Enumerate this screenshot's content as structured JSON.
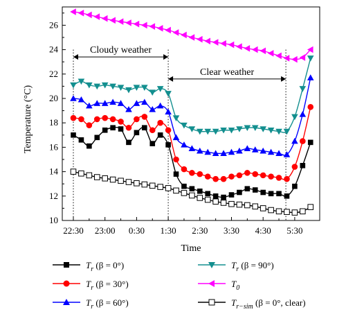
{
  "chart_data": {
    "type": "line",
    "xlabel": "Time",
    "ylabel": "Temperature (°C)",
    "x_ticks": [
      "22:30",
      "23:00",
      "0:30",
      "1:30",
      "2:30",
      "3:30",
      "4:30",
      "5:30"
    ],
    "x_tick_pos": [
      0,
      1,
      2,
      3,
      4,
      5,
      6,
      7
    ],
    "xlim": [
      -0.3,
      7.8
    ],
    "ylim": [
      10,
      27.5
    ],
    "y_ticks": [
      10,
      12,
      14,
      16,
      18,
      20,
      22,
      24,
      26
    ],
    "annotations": [
      {
        "text": "Cloudy weather",
        "x_from": 0,
        "x_to": 3.0,
        "y": 23.4
      },
      {
        "text": "Clear weather",
        "x_from": 3.0,
        "x_to": 6.72,
        "y": 21.6
      }
    ],
    "vertical_lines": [
      0,
      3.0,
      6.72
    ],
    "series": [
      {
        "key": "tr0",
        "legend": {
          "main": "T",
          "sub": "r",
          "rest": " (β = 0°)"
        },
        "color": "#000000",
        "marker": "square-filled",
        "x": [
          0,
          0.25,
          0.5,
          0.75,
          1,
          1.25,
          1.5,
          1.75,
          2,
          2.25,
          2.5,
          2.75,
          3,
          3.25,
          3.5,
          3.75,
          4,
          4.25,
          4.5,
          4.75,
          5,
          5.25,
          5.5,
          5.75,
          6,
          6.25,
          6.5,
          6.75,
          7,
          7.25,
          7.5
        ],
        "y": [
          17.0,
          16.6,
          16.1,
          16.8,
          17.4,
          17.6,
          17.5,
          16.4,
          17.2,
          17.6,
          16.3,
          17.0,
          16.2,
          13.8,
          12.8,
          12.6,
          12.4,
          12.2,
          12.0,
          11.9,
          12.1,
          12.3,
          12.6,
          12.5,
          12.3,
          12.2,
          12.2,
          12.0,
          12.8,
          14.5,
          16.4
        ]
      },
      {
        "key": "tr30",
        "legend": {
          "main": "T",
          "sub": "r",
          "rest": " (β = 30°)"
        },
        "color": "#ff0000",
        "marker": "circle-filled",
        "x": [
          0,
          0.25,
          0.5,
          0.75,
          1,
          1.25,
          1.5,
          1.75,
          2,
          2.25,
          2.5,
          2.75,
          3,
          3.25,
          3.5,
          3.75,
          4,
          4.25,
          4.5,
          4.75,
          5,
          5.25,
          5.5,
          5.75,
          6,
          6.25,
          6.5,
          6.75,
          7,
          7.25,
          7.5
        ],
        "y": [
          18.4,
          18.3,
          17.8,
          18.3,
          18.4,
          18.3,
          18.1,
          17.6,
          18.3,
          18.5,
          17.4,
          18.0,
          17.4,
          15.0,
          14.2,
          13.9,
          13.8,
          13.6,
          13.4,
          13.4,
          13.6,
          13.7,
          13.9,
          13.8,
          13.7,
          13.6,
          13.5,
          13.4,
          14.4,
          16.5,
          19.3
        ]
      },
      {
        "key": "tr60",
        "legend": {
          "main": "T",
          "sub": "r",
          "rest": " (β = 60°)"
        },
        "color": "#0000ff",
        "marker": "triangle-up-filled",
        "x": [
          0,
          0.25,
          0.5,
          0.75,
          1,
          1.25,
          1.5,
          1.75,
          2,
          2.25,
          2.5,
          2.75,
          3,
          3.25,
          3.5,
          3.75,
          4,
          4.25,
          4.5,
          4.75,
          5,
          5.25,
          5.5,
          5.75,
          6,
          6.25,
          6.5,
          6.75,
          7,
          7.25,
          7.5
        ],
        "y": [
          20.0,
          19.9,
          19.4,
          19.6,
          19.6,
          19.7,
          19.6,
          19.1,
          19.6,
          19.7,
          19.1,
          19.4,
          18.9,
          16.8,
          16.2,
          15.9,
          15.7,
          15.6,
          15.5,
          15.5,
          15.6,
          15.7,
          15.9,
          15.8,
          15.7,
          15.6,
          15.5,
          15.4,
          16.5,
          18.7,
          21.7
        ]
      },
      {
        "key": "tr90",
        "legend": {
          "main": "T",
          "sub": "r",
          "rest": " (β = 90°)"
        },
        "color": "#138f8f",
        "marker": "triangle-down-filled",
        "x": [
          0,
          0.25,
          0.5,
          0.75,
          1,
          1.25,
          1.5,
          1.75,
          2,
          2.25,
          2.5,
          2.75,
          3,
          3.25,
          3.5,
          3.75,
          4,
          4.25,
          4.5,
          4.75,
          5,
          5.25,
          5.5,
          5.75,
          6,
          6.25,
          6.5,
          6.75,
          7,
          7.25,
          7.5
        ],
        "y": [
          21.1,
          21.4,
          21.1,
          21.0,
          21.1,
          21.0,
          20.9,
          20.7,
          20.9,
          20.9,
          20.5,
          20.8,
          20.4,
          18.4,
          17.8,
          17.5,
          17.3,
          17.3,
          17.3,
          17.4,
          17.4,
          17.5,
          17.6,
          17.6,
          17.5,
          17.4,
          17.3,
          17.3,
          18.5,
          20.8,
          23.3
        ]
      },
      {
        "key": "t0",
        "legend": {
          "main": "T",
          "sub": "0",
          "rest": ""
        },
        "color": "#ff00ff",
        "marker": "triangle-left-filled",
        "x": [
          0,
          0.25,
          0.5,
          0.75,
          1,
          1.25,
          1.5,
          1.75,
          2,
          2.25,
          2.5,
          2.75,
          3,
          3.25,
          3.5,
          3.75,
          4,
          4.25,
          4.5,
          4.75,
          5,
          5.25,
          5.5,
          5.75,
          6,
          6.25,
          6.5,
          6.75,
          7,
          7.25,
          7.5
        ],
        "y": [
          27.1,
          27.0,
          26.85,
          26.7,
          26.55,
          26.4,
          26.3,
          26.2,
          26.1,
          26.0,
          25.9,
          25.75,
          25.6,
          25.4,
          25.2,
          25.0,
          24.85,
          24.7,
          24.6,
          24.5,
          24.4,
          24.25,
          24.1,
          24.0,
          23.9,
          23.7,
          23.5,
          23.3,
          23.2,
          23.35,
          24.0
        ]
      },
      {
        "key": "trsim",
        "legend": {
          "main": "T",
          "sub": "r−sim",
          "rest": " (β = 0°, clear)"
        },
        "color": "#000000",
        "marker": "square-open",
        "x": [
          0,
          0.25,
          0.5,
          0.75,
          1,
          1.25,
          1.5,
          1.75,
          2,
          2.25,
          2.5,
          2.75,
          3,
          3.25,
          3.5,
          3.75,
          4,
          4.25,
          4.5,
          4.75,
          5,
          5.25,
          5.5,
          5.75,
          6,
          6.25,
          6.5,
          6.75,
          7,
          7.25,
          7.5
        ],
        "y": [
          14.0,
          13.85,
          13.7,
          13.55,
          13.45,
          13.35,
          13.25,
          13.15,
          13.05,
          12.95,
          12.85,
          12.75,
          12.65,
          12.45,
          12.25,
          12.05,
          11.85,
          11.7,
          11.55,
          11.45,
          11.35,
          11.3,
          11.25,
          11.15,
          11.0,
          10.85,
          10.75,
          10.7,
          10.65,
          10.75,
          11.1
        ]
      }
    ]
  }
}
